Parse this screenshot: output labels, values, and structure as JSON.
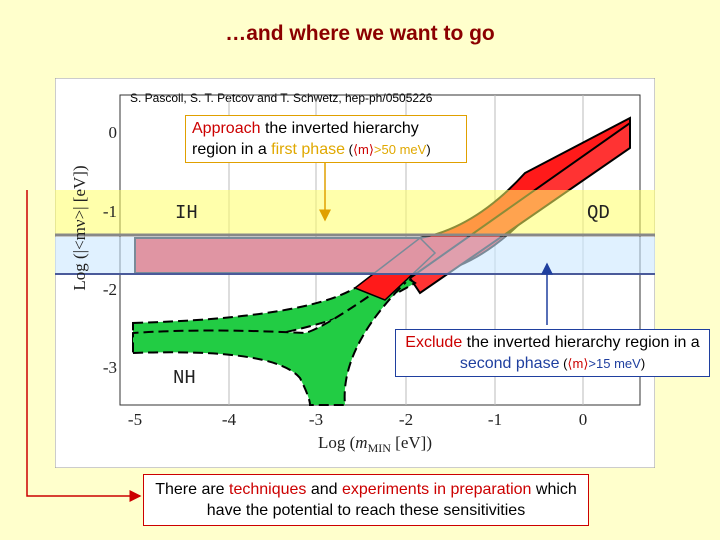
{
  "slide": {
    "title": "…and where we want to go",
    "citation": "S. Pascoli, S. T. Petcov and T. Schwetz, hep-ph/0505226",
    "plot": {
      "y_label": "Log (|<mν>| [eV])",
      "x_label_prefix": "Log (",
      "x_label_var": "m",
      "x_label_sub": "MIN",
      "x_label_suffix": " [eV])",
      "y_tick_labels": [
        "0",
        "-1",
        "-2",
        "-3"
      ],
      "x_tick_labels": [
        "-5",
        "-4",
        "-3",
        "-2",
        "-1",
        "0"
      ],
      "regions": [
        "IH",
        "QD",
        "NH"
      ]
    },
    "callout_1": [
      "Approach",
      " the inverted hierarchy region in a ",
      "first phase",
      " (",
      "⟨m⟩",
      ">50 meV",
      ")"
    ],
    "callout_2": [
      "Exclude",
      " the inverted hierarchy region in a ",
      "second phase",
      " (",
      "⟨m⟩",
      ">15 meV",
      ")"
    ],
    "footer": [
      "There are ",
      "techniques",
      " and ",
      "experiments in preparation",
      " which have the potential to reach these sensitivities"
    ]
  }
}
